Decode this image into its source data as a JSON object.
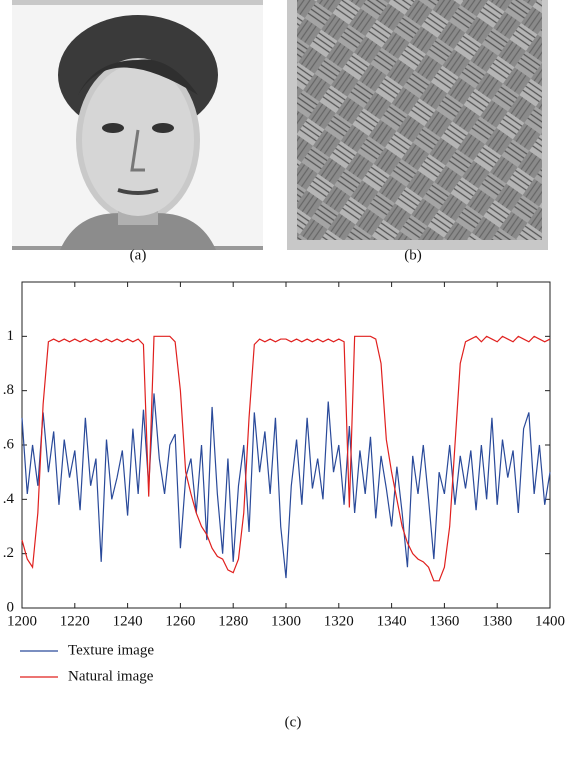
{
  "captions": [
    "(a)",
    "(b)"
  ],
  "chart_data": {
    "type": "line",
    "caption": "(c)",
    "x": [
      1200,
      1202,
      1204,
      1206,
      1208,
      1210,
      1212,
      1214,
      1216,
      1218,
      1220,
      1222,
      1224,
      1226,
      1228,
      1230,
      1232,
      1234,
      1236,
      1238,
      1240,
      1242,
      1244,
      1246,
      1248,
      1250,
      1252,
      1254,
      1256,
      1258,
      1260,
      1262,
      1264,
      1266,
      1268,
      1270,
      1272,
      1274,
      1276,
      1278,
      1280,
      1282,
      1284,
      1286,
      1288,
      1290,
      1292,
      1294,
      1296,
      1298,
      1300,
      1302,
      1304,
      1306,
      1308,
      1310,
      1312,
      1314,
      1316,
      1318,
      1320,
      1322,
      1324,
      1326,
      1328,
      1330,
      1332,
      1334,
      1336,
      1338,
      1340,
      1342,
      1344,
      1346,
      1348,
      1350,
      1352,
      1354,
      1356,
      1358,
      1360,
      1362,
      1364,
      1366,
      1368,
      1370,
      1372,
      1374,
      1376,
      1378,
      1380,
      1382,
      1384,
      1386,
      1388,
      1390,
      1392,
      1394,
      1396,
      1398,
      1400
    ],
    "series": [
      {
        "name": "Texture image",
        "color": "#2a4a9a",
        "values": [
          0.7,
          0.42,
          0.6,
          0.45,
          0.72,
          0.5,
          0.65,
          0.38,
          0.62,
          0.48,
          0.58,
          0.36,
          0.7,
          0.45,
          0.55,
          0.17,
          0.62,
          0.4,
          0.48,
          0.58,
          0.34,
          0.66,
          0.42,
          0.73,
          0.45,
          0.79,
          0.55,
          0.42,
          0.6,
          0.64,
          0.22,
          0.48,
          0.55,
          0.35,
          0.6,
          0.25,
          0.74,
          0.42,
          0.2,
          0.55,
          0.17,
          0.45,
          0.6,
          0.28,
          0.72,
          0.5,
          0.65,
          0.42,
          0.7,
          0.3,
          0.11,
          0.45,
          0.62,
          0.38,
          0.7,
          0.44,
          0.55,
          0.4,
          0.76,
          0.5,
          0.6,
          0.38,
          0.67,
          0.35,
          0.58,
          0.42,
          0.63,
          0.33,
          0.56,
          0.44,
          0.3,
          0.52,
          0.35,
          0.15,
          0.56,
          0.42,
          0.6,
          0.4,
          0.18,
          0.5,
          0.42,
          0.6,
          0.38,
          0.56,
          0.44,
          0.58,
          0.36,
          0.6,
          0.4,
          0.7,
          0.38,
          0.62,
          0.48,
          0.58,
          0.35,
          0.66,
          0.72,
          0.42,
          0.6,
          0.38,
          0.5
        ]
      },
      {
        "name": "Natural image",
        "color": "#e0201e",
        "values": [
          0.25,
          0.18,
          0.15,
          0.35,
          0.75,
          0.98,
          0.99,
          0.98,
          0.99,
          0.98,
          0.99,
          0.98,
          0.99,
          0.98,
          0.99,
          0.98,
          0.99,
          0.98,
          0.99,
          0.98,
          0.99,
          0.98,
          0.99,
          0.97,
          0.41,
          1.0,
          1.0,
          1.0,
          1.0,
          0.98,
          0.8,
          0.5,
          0.42,
          0.35,
          0.3,
          0.27,
          0.22,
          0.19,
          0.18,
          0.14,
          0.13,
          0.18,
          0.35,
          0.7,
          0.97,
          0.99,
          0.98,
          0.99,
          0.98,
          0.99,
          0.99,
          0.98,
          0.99,
          0.98,
          0.99,
          0.98,
          0.99,
          0.98,
          0.99,
          0.98,
          0.99,
          0.98,
          0.37,
          1.0,
          1.0,
          1.0,
          1.0,
          0.99,
          0.9,
          0.62,
          0.5,
          0.4,
          0.3,
          0.24,
          0.2,
          0.18,
          0.17,
          0.15,
          0.1,
          0.1,
          0.15,
          0.3,
          0.6,
          0.9,
          0.98,
          0.99,
          1.0,
          0.98,
          1.0,
          0.99,
          0.98,
          1.0,
          0.99,
          0.98,
          1.0,
          0.99,
          0.98,
          1.0,
          0.99,
          0.98,
          0.99
        ]
      }
    ],
    "xlim": [
      1200,
      1400
    ],
    "xticks": [
      1200,
      1220,
      1240,
      1260,
      1280,
      1300,
      1320,
      1340,
      1360,
      1380,
      1400
    ],
    "ylim": [
      0,
      1.2
    ],
    "yticks": [
      0,
      {
        "value": 0.2,
        "label": ".2"
      },
      {
        "value": 0.4,
        "label": ".4"
      },
      {
        "value": 0.6,
        "label": ".6"
      },
      {
        "value": 0.8,
        "label": ".8"
      },
      1
    ]
  }
}
